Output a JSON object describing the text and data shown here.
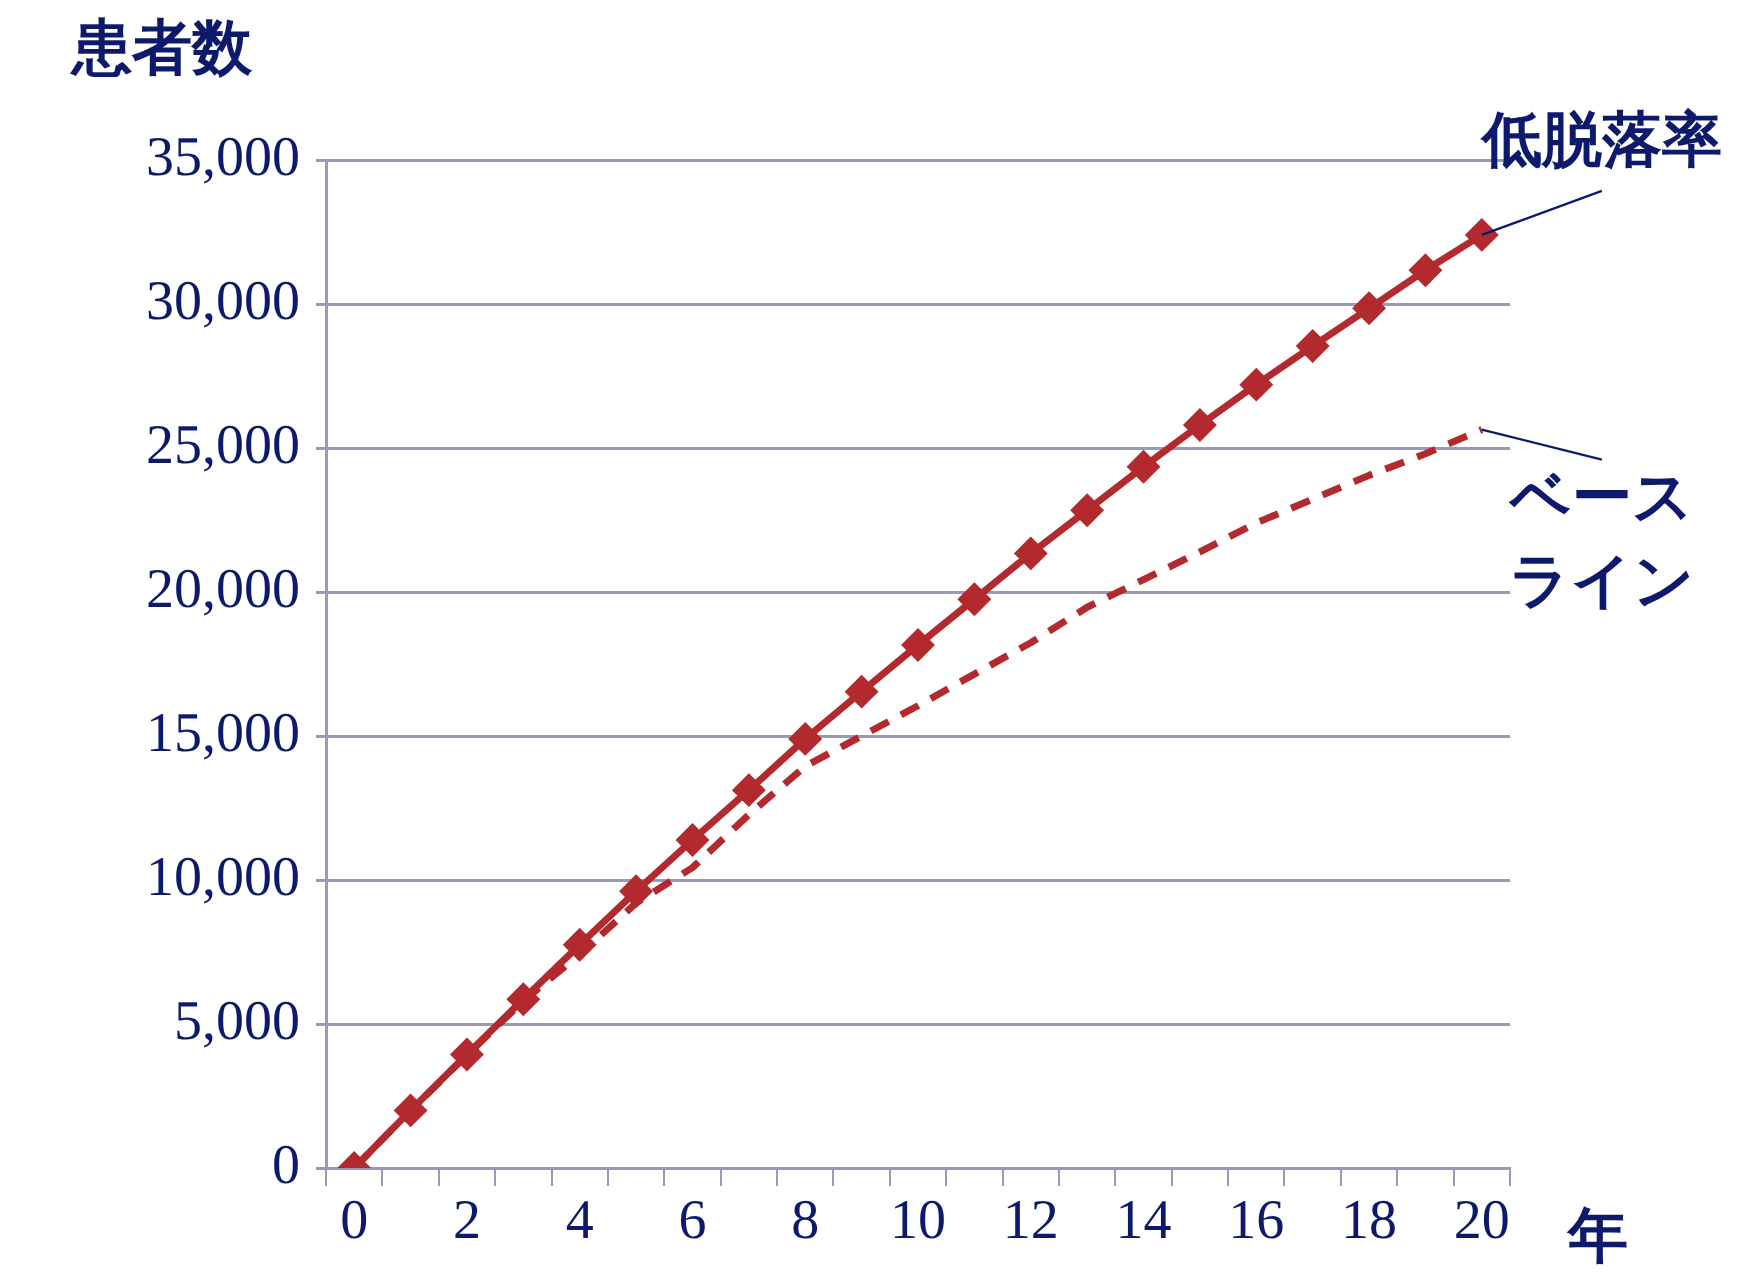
{
  "chart_data": {
    "type": "line",
    "xlabel": "年",
    "ylabel": "患者数",
    "categories": [
      "0",
      null,
      "2",
      null,
      "4",
      null,
      "6",
      null,
      "8",
      null,
      "10",
      null,
      "12",
      null,
      "14",
      null,
      "16",
      null,
      "18",
      null,
      "20"
    ],
    "series": [
      {
        "name": "低脱落率",
        "color": "#b2292e",
        "marker": "diamond",
        "line_style": "solid",
        "values": [
          0,
          2000,
          3940,
          5860,
          7750,
          9610,
          11390,
          13120,
          14900,
          16540,
          18160,
          19750,
          21340,
          22840,
          24350,
          25800,
          27200,
          28540,
          29850,
          31170,
          32400
        ]
      },
      {
        "name": "ベースライン",
        "color": "#b2292e",
        "marker": "none",
        "line_style": "dashed",
        "values": [
          0,
          2000,
          3920,
          5800,
          7420,
          9200,
          10430,
          12270,
          13950,
          15000,
          16050,
          17150,
          18240,
          19470,
          20430,
          21390,
          22400,
          23220,
          24050,
          24800,
          25640
        ]
      }
    ],
    "ylim": [
      0,
      35000
    ],
    "yticks": [
      {
        "value": 0,
        "label": "0"
      },
      {
        "value": 5000,
        "label": "5,000"
      },
      {
        "value": 10000,
        "label": "10,000"
      },
      {
        "value": 15000,
        "label": "15,000"
      },
      {
        "value": 20000,
        "label": "20,000"
      },
      {
        "value": 25000,
        "label": "25,000"
      },
      {
        "value": 30000,
        "label": "30,000"
      },
      {
        "value": 35000,
        "label": "35,000"
      }
    ],
    "grid": "y",
    "legend": false
  }
}
